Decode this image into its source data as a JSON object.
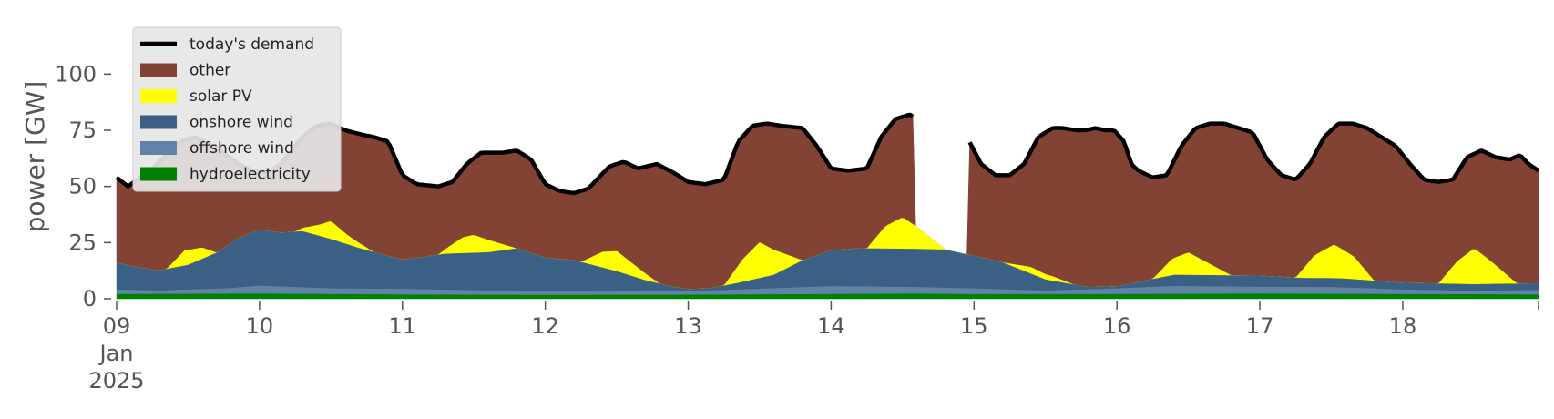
{
  "chart_data": {
    "type": "area",
    "title": "",
    "ylabel": "power [GW]",
    "xlabel": "",
    "x_range_days": [
      0,
      9.95
    ],
    "ylim": [
      0,
      120
    ],
    "yticks": [
      0,
      25,
      50,
      75,
      100
    ],
    "x_ticks": [
      {
        "day": 0,
        "label": "09",
        "sublabel1": "Jan",
        "sublabel2": "2025"
      },
      {
        "day": 1,
        "label": "10"
      },
      {
        "day": 2,
        "label": "11"
      },
      {
        "day": 3,
        "label": "12"
      },
      {
        "day": 4,
        "label": "13"
      },
      {
        "day": 5,
        "label": "14"
      },
      {
        "day": 6,
        "label": "15"
      },
      {
        "day": 7,
        "label": "16"
      },
      {
        "day": 8,
        "label": "17"
      },
      {
        "day": 9,
        "label": "18"
      }
    ],
    "legend_position": "top-left",
    "legend": [
      {
        "label": "today's demand",
        "kind": "line",
        "color": "#000000"
      },
      {
        "label": "other",
        "kind": "patch",
        "color": "#824334"
      },
      {
        "label": "solar PV",
        "kind": "patch",
        "color": "#ffff00"
      },
      {
        "label": "onshore wind",
        "kind": "patch",
        "color": "#3a6185"
      },
      {
        "label": "offshore wind",
        "kind": "patch",
        "color": "#6183a8"
      },
      {
        "label": "hydroelectricity",
        "kind": "patch",
        "color": "#008000"
      }
    ],
    "gap_days": [
      5.58,
      5.97
    ],
    "series": {
      "hydro": [
        [
          0,
          2.0
        ],
        [
          1,
          2.2
        ],
        [
          2,
          1.8
        ],
        [
          3,
          1.6
        ],
        [
          4,
          1.7
        ],
        [
          5,
          2.0
        ],
        [
          5.58,
          2.2
        ],
        [
          5.97,
          2.0
        ],
        [
          7,
          2.0
        ],
        [
          8,
          2.2
        ],
        [
          9,
          2.0
        ],
        [
          9.95,
          1.8
        ]
      ],
      "offshore": [
        [
          0,
          2.0
        ],
        [
          0.3,
          1.5
        ],
        [
          0.8,
          2.5
        ],
        [
          1,
          3.5
        ],
        [
          1.5,
          2.5
        ],
        [
          2,
          2.5
        ],
        [
          2.5,
          2.0
        ],
        [
          3,
          1.5
        ],
        [
          3.5,
          1.5
        ],
        [
          4,
          1.5
        ],
        [
          4.5,
          2.5
        ],
        [
          5,
          3.5
        ],
        [
          5.5,
          3.0
        ],
        [
          6,
          2.5
        ],
        [
          6.5,
          1.5
        ],
        [
          7,
          2.5
        ],
        [
          7.4,
          3.5
        ],
        [
          8,
          3.0
        ],
        [
          8.5,
          3.0
        ],
        [
          9,
          2.0
        ],
        [
          9.5,
          1.5
        ],
        [
          9.95,
          2.0
        ]
      ],
      "onshore": [
        [
          0,
          12
        ],
        [
          0.15,
          10
        ],
        [
          0.3,
          9
        ],
        [
          0.5,
          11
        ],
        [
          0.7,
          16
        ],
        [
          0.85,
          22
        ],
        [
          1,
          25
        ],
        [
          1.15,
          24
        ],
        [
          1.3,
          25
        ],
        [
          1.5,
          22
        ],
        [
          1.7,
          18
        ],
        [
          2,
          13
        ],
        [
          2.3,
          16
        ],
        [
          2.6,
          17
        ],
        [
          2.8,
          19
        ],
        [
          3,
          15
        ],
        [
          3.2,
          14
        ],
        [
          3.5,
          9
        ],
        [
          3.7,
          5
        ],
        [
          3.9,
          2
        ],
        [
          4,
          1
        ],
        [
          4.15,
          1
        ],
        [
          4.35,
          3
        ],
        [
          4.6,
          6
        ],
        [
          4.8,
          12
        ],
        [
          5,
          16
        ],
        [
          5.2,
          17
        ],
        [
          5.5,
          17
        ],
        [
          5.8,
          17
        ],
        [
          6.2,
          12
        ],
        [
          6.5,
          5
        ],
        [
          6.8,
          1
        ],
        [
          7,
          1
        ],
        [
          7.2,
          3
        ],
        [
          7.4,
          5
        ],
        [
          7.6,
          5
        ],
        [
          8,
          5
        ],
        [
          8.3,
          4
        ],
        [
          8.6,
          4
        ],
        [
          9,
          3
        ],
        [
          9.4,
          3
        ],
        [
          9.95,
          3
        ]
      ],
      "solar": [
        [
          0,
          0
        ],
        [
          0.35,
          0
        ],
        [
          0.48,
          7
        ],
        [
          0.6,
          5
        ],
        [
          0.7,
          0
        ],
        [
          1.25,
          0
        ],
        [
          1.42,
          5
        ],
        [
          1.5,
          8
        ],
        [
          1.62,
          4
        ],
        [
          1.8,
          0
        ],
        [
          2.25,
          0
        ],
        [
          2.42,
          7
        ],
        [
          2.5,
          8
        ],
        [
          2.62,
          5
        ],
        [
          2.8,
          0
        ],
        [
          3.25,
          0
        ],
        [
          3.4,
          7
        ],
        [
          3.5,
          9
        ],
        [
          3.6,
          6
        ],
        [
          3.8,
          0
        ],
        [
          4.25,
          0
        ],
        [
          4.38,
          10
        ],
        [
          4.5,
          16
        ],
        [
          4.62,
          10
        ],
        [
          4.8,
          0
        ],
        [
          5.25,
          0
        ],
        [
          5.38,
          10
        ],
        [
          5.5,
          14
        ],
        [
          5.62,
          9
        ],
        [
          5.8,
          0
        ],
        [
          6.2,
          0
        ],
        [
          6.4,
          3
        ],
        [
          6.55,
          2
        ],
        [
          6.7,
          0
        ],
        [
          7.25,
          0
        ],
        [
          7.38,
          7
        ],
        [
          7.5,
          10
        ],
        [
          7.62,
          6
        ],
        [
          7.8,
          0
        ],
        [
          8.25,
          0
        ],
        [
          8.38,
          10
        ],
        [
          8.52,
          15
        ],
        [
          8.66,
          10
        ],
        [
          8.8,
          0
        ],
        [
          9.25,
          0
        ],
        [
          9.38,
          10
        ],
        [
          9.5,
          16
        ],
        [
          9.62,
          10
        ],
        [
          9.8,
          0
        ],
        [
          9.95,
          0
        ]
      ],
      "demand": [
        [
          0,
          54
        ],
        [
          0.08,
          50
        ],
        [
          0.25,
          58
        ],
        [
          0.45,
          70
        ],
        [
          0.55,
          72
        ],
        [
          0.7,
          67
        ],
        [
          0.85,
          60
        ],
        [
          0.95,
          57
        ],
        [
          1.05,
          56
        ],
        [
          1.15,
          60
        ],
        [
          1.3,
          72
        ],
        [
          1.4,
          77
        ],
        [
          1.5,
          78
        ],
        [
          1.6,
          75
        ],
        [
          1.72,
          73
        ],
        [
          1.8,
          72
        ],
        [
          1.9,
          70
        ],
        [
          2.0,
          55
        ],
        [
          2.1,
          51
        ],
        [
          2.25,
          50
        ],
        [
          2.35,
          52
        ],
        [
          2.45,
          60
        ],
        [
          2.55,
          65
        ],
        [
          2.7,
          65
        ],
        [
          2.8,
          66
        ],
        [
          2.9,
          62
        ],
        [
          3.0,
          51
        ],
        [
          3.1,
          48
        ],
        [
          3.2,
          47
        ],
        [
          3.3,
          49
        ],
        [
          3.45,
          59
        ],
        [
          3.55,
          61
        ],
        [
          3.65,
          58
        ],
        [
          3.78,
          60
        ],
        [
          3.9,
          56
        ],
        [
          4.0,
          52
        ],
        [
          4.12,
          51
        ],
        [
          4.25,
          53
        ],
        [
          4.35,
          70
        ],
        [
          4.45,
          77
        ],
        [
          4.55,
          78
        ],
        [
          4.65,
          77
        ],
        [
          4.8,
          76
        ],
        [
          4.9,
          68
        ],
        [
          5.0,
          58
        ],
        [
          5.12,
          57
        ],
        [
          5.25,
          58
        ],
        [
          5.35,
          72
        ],
        [
          5.45,
          80
        ],
        [
          5.55,
          82
        ],
        [
          5.65,
          78
        ],
        [
          5.75,
          76
        ],
        [
          5.85,
          78
        ],
        [
          5.95,
          72
        ],
        [
          6.05,
          60
        ],
        [
          6.15,
          55
        ],
        [
          6.25,
          55
        ],
        [
          6.35,
          60
        ],
        [
          6.45,
          72
        ],
        [
          6.55,
          76
        ],
        [
          6.62,
          76
        ],
        [
          6.72,
          75
        ],
        [
          6.78,
          75
        ],
        [
          6.85,
          76
        ],
        [
          6.92,
          75
        ],
        [
          6.98,
          75
        ],
        [
          7.05,
          70
        ],
        [
          7.1,
          60
        ],
        [
          7.15,
          57
        ],
        [
          7.25,
          54
        ],
        [
          7.35,
          55
        ],
        [
          7.45,
          68
        ],
        [
          7.55,
          76
        ],
        [
          7.65,
          78
        ],
        [
          7.75,
          78
        ],
        [
          7.85,
          76
        ],
        [
          7.95,
          74
        ],
        [
          8.05,
          62
        ],
        [
          8.15,
          55
        ],
        [
          8.25,
          53
        ],
        [
          8.35,
          60
        ],
        [
          8.45,
          72
        ],
        [
          8.55,
          78
        ],
        [
          8.65,
          78
        ],
        [
          8.75,
          76
        ],
        [
          8.85,
          72
        ],
        [
          8.95,
          68
        ],
        [
          9.05,
          60
        ],
        [
          9.15,
          53
        ],
        [
          9.25,
          52
        ],
        [
          9.35,
          53
        ],
        [
          9.45,
          63
        ],
        [
          9.55,
          66
        ],
        [
          9.65,
          63
        ],
        [
          9.75,
          62
        ],
        [
          9.82,
          64
        ],
        [
          9.88,
          60
        ],
        [
          9.95,
          57
        ]
      ]
    }
  }
}
